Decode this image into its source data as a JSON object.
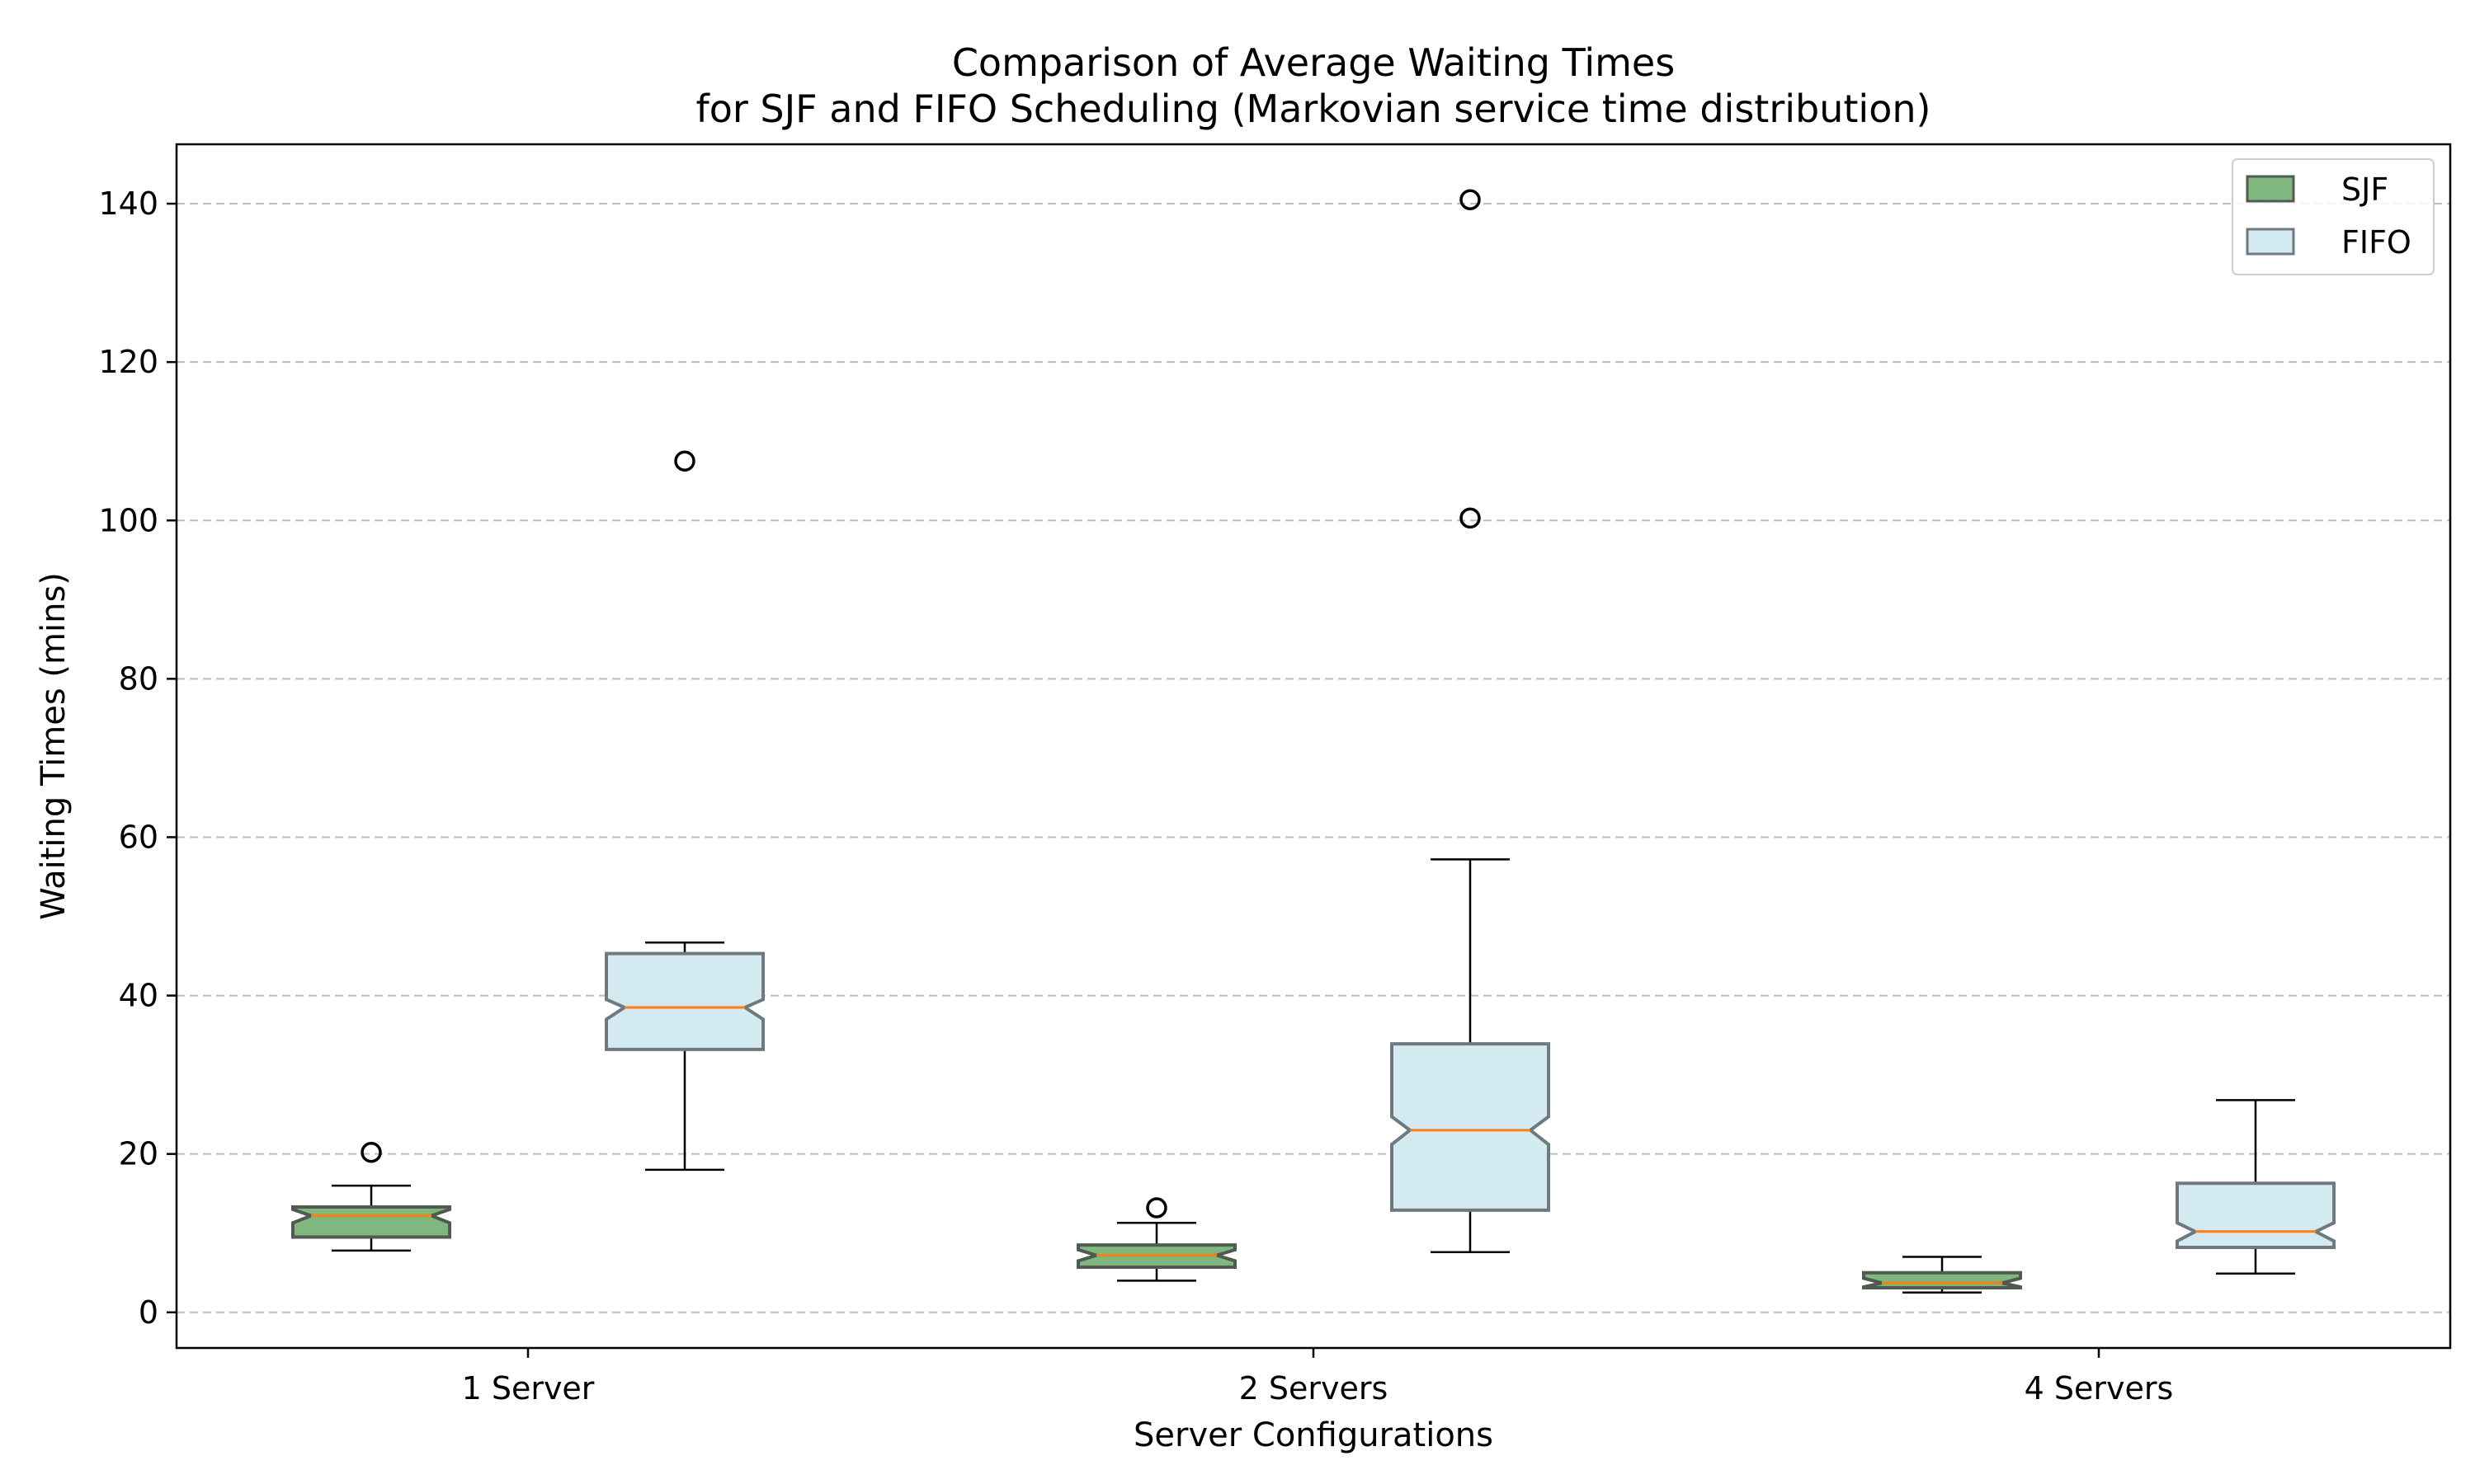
{
  "chart_data": {
    "type": "boxplot",
    "title": "Comparison of Average Waiting Times",
    "subtitle": "for SJF and FIFO Scheduling (Markovian service time distribution)",
    "xlabel": "Server Configurations",
    "ylabel": "Waiting Times (mins)",
    "categories": [
      "1 Server",
      "2 Servers",
      "4 Servers"
    ],
    "yticks": [
      0,
      20,
      40,
      60,
      80,
      100,
      120,
      140
    ],
    "ylim": [
      -4.5,
      147.5
    ],
    "grid": "y, dashed",
    "legend_position": "top-right",
    "notched": true,
    "series": [
      {
        "name": "SJF",
        "fill_color": "#7fb77e",
        "edge_color": "#4f5b50",
        "boxes": [
          {
            "whisker_low": 7.8,
            "q1": 9.5,
            "median": 12.2,
            "q3": 13.3,
            "whisker_high": 16.0,
            "notch_low": 11.3,
            "notch_high": 13.0,
            "outliers": [
              20.2
            ]
          },
          {
            "whisker_low": 4.0,
            "q1": 5.7,
            "median": 7.2,
            "q3": 8.5,
            "whisker_high": 11.3,
            "notch_low": 6.5,
            "notch_high": 7.9,
            "outliers": [
              13.2
            ]
          },
          {
            "whisker_low": 2.5,
            "q1": 3.1,
            "median": 3.7,
            "q3": 5.0,
            "whisker_high": 7.0,
            "notch_low": 3.2,
            "notch_high": 4.3,
            "outliers": []
          }
        ]
      },
      {
        "name": "FIFO",
        "fill_color": "#d3eaf0",
        "edge_color": "#6e7a80",
        "boxes": [
          {
            "whisker_low": 18.0,
            "q1": 33.2,
            "median": 38.5,
            "q3": 45.3,
            "whisker_high": 46.7,
            "notch_low": 37.0,
            "notch_high": 39.5,
            "outliers": [
              107.5
            ]
          },
          {
            "whisker_low": 7.6,
            "q1": 12.9,
            "median": 23.0,
            "q3": 33.9,
            "whisker_high": 57.2,
            "notch_low": 21.2,
            "notch_high": 24.7,
            "outliers": [
              100.3,
              140.5
            ]
          },
          {
            "whisker_low": 4.9,
            "q1": 8.2,
            "median": 10.2,
            "q3": 16.3,
            "whisker_high": 26.8,
            "notch_low": 9.0,
            "notch_high": 11.3,
            "outliers": []
          }
        ]
      }
    ],
    "median_color": "#ff7f0e"
  }
}
